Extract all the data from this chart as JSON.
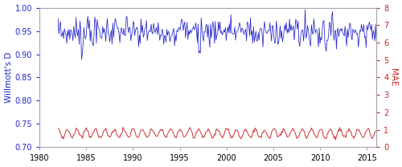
{
  "ylabel_left": "Willmott's D",
  "ylabel_right": "MAE",
  "ylim_left": [
    0.7,
    1.0
  ],
  "ylim_right": [
    0,
    8
  ],
  "xlim": [
    1980,
    2016
  ],
  "yticks_left": [
    0.7,
    0.75,
    0.8,
    0.85,
    0.9,
    0.95,
    1.0
  ],
  "yticks_right": [
    0,
    1,
    2,
    3,
    4,
    5,
    6,
    7,
    8
  ],
  "xticks": [
    1980,
    1985,
    1990,
    1995,
    2000,
    2005,
    2010,
    2015
  ],
  "blue_color": "#2222cc",
  "red_color": "#cc2222",
  "ylabel_left_color": "#2222cc",
  "ylabel_right_color": "#cc2222",
  "tick_color_left": "#2222cc",
  "tick_color_right": "#cc2222",
  "axis_color": "#aaaaaa",
  "background_color": "#ffffff",
  "figsize": [
    5.0,
    2.08
  ],
  "dpi": 100
}
